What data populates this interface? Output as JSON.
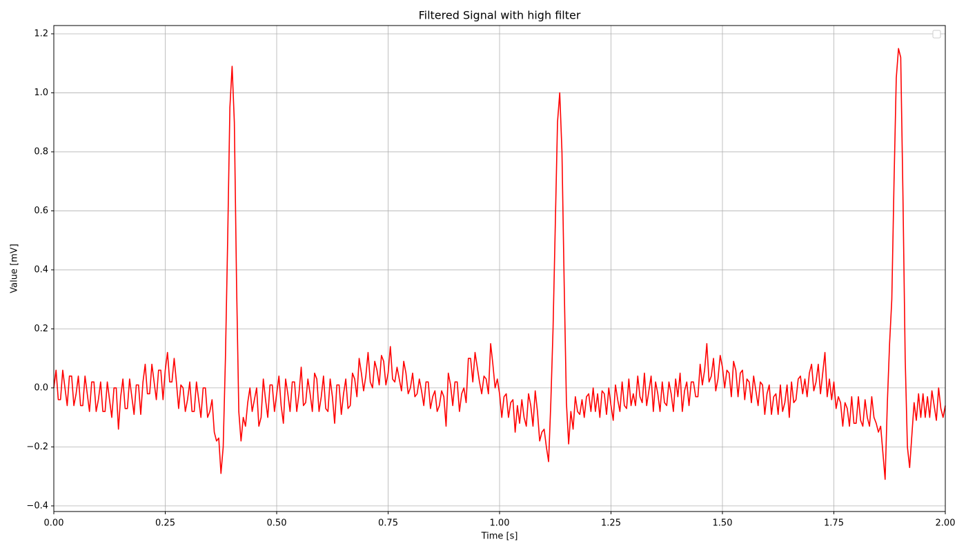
{
  "chart_data": {
    "type": "line",
    "title": "Filtered Signal with high filter",
    "xlabel": "Time [s]",
    "ylabel": "Value [mV]",
    "grid": true,
    "xlim": [
      0,
      2
    ],
    "ylim": [
      -0.419,
      1.228
    ],
    "xticks": [
      {
        "value": 0,
        "label": "0.00"
      },
      {
        "value": 0.25,
        "label": "0.25"
      },
      {
        "value": 0.5,
        "label": "0.50"
      },
      {
        "value": 0.75,
        "label": "0.75"
      },
      {
        "value": 1,
        "label": "1.00"
      },
      {
        "value": 1.25,
        "label": "1.25"
      },
      {
        "value": 1.5,
        "label": "1.50"
      },
      {
        "value": 1.75,
        "label": "1.75"
      },
      {
        "value": 2,
        "label": "2.00"
      }
    ],
    "yticks": [
      {
        "value": -0.4,
        "label": "−0.4"
      },
      {
        "value": -0.2,
        "label": "−0.2"
      },
      {
        "value": 0,
        "label": "0.0"
      },
      0.2,
      0.4,
      0.6,
      0.8,
      {
        "value": 1,
        "label": "1.0"
      },
      1.2
    ],
    "x": [
      0,
      0.005,
      0.01,
      0.015,
      0.02,
      0.025,
      0.03,
      0.035,
      0.04,
      0.045,
      0.05,
      0.055,
      0.06,
      0.065,
      0.07,
      0.075,
      0.08,
      0.085,
      0.09,
      0.095,
      0.1,
      0.105,
      0.11,
      0.115,
      0.12,
      0.125,
      0.13,
      0.135,
      0.14,
      0.145,
      0.15,
      0.155,
      0.16,
      0.165,
      0.17,
      0.175,
      0.18,
      0.185,
      0.19,
      0.195,
      0.2,
      0.205,
      0.21,
      0.215,
      0.22,
      0.225,
      0.23,
      0.235,
      0.24,
      0.245,
      0.25,
      0.255,
      0.26,
      0.265,
      0.27,
      0.275,
      0.28,
      0.285,
      0.29,
      0.295,
      0.3,
      0.305,
      0.31,
      0.315,
      0.32,
      0.325,
      0.33,
      0.335,
      0.34,
      0.345,
      0.35,
      0.355,
      0.36,
      0.365,
      0.37,
      0.375,
      0.38,
      0.385,
      0.39,
      0.395,
      0.4,
      0.405,
      0.41,
      0.415,
      0.42,
      0.425,
      0.43,
      0.435,
      0.44,
      0.445,
      0.45,
      0.455,
      0.46,
      0.465,
      0.47,
      0.475,
      0.48,
      0.485,
      0.49,
      0.495,
      0.5,
      0.505,
      0.51,
      0.515,
      0.52,
      0.525,
      0.53,
      0.535,
      0.54,
      0.545,
      0.55,
      0.555,
      0.56,
      0.565,
      0.57,
      0.575,
      0.58,
      0.585,
      0.59,
      0.595,
      0.6,
      0.605,
      0.61,
      0.615,
      0.62,
      0.625,
      0.63,
      0.635,
      0.64,
      0.645,
      0.65,
      0.655,
      0.66,
      0.665,
      0.67,
      0.675,
      0.68,
      0.685,
      0.69,
      0.695,
      0.7,
      0.705,
      0.71,
      0.715,
      0.72,
      0.725,
      0.73,
      0.735,
      0.74,
      0.745,
      0.75,
      0.755,
      0.76,
      0.765,
      0.77,
      0.775,
      0.78,
      0.785,
      0.79,
      0.795,
      0.8,
      0.805,
      0.81,
      0.815,
      0.82,
      0.825,
      0.83,
      0.835,
      0.84,
      0.845,
      0.85,
      0.855,
      0.86,
      0.865,
      0.87,
      0.875,
      0.88,
      0.885,
      0.89,
      0.895,
      0.9,
      0.905,
      0.91,
      0.915,
      0.92,
      0.925,
      0.93,
      0.935,
      0.94,
      0.945,
      0.95,
      0.955,
      0.96,
      0.965,
      0.97,
      0.975,
      0.98,
      0.985,
      0.99,
      0.995,
      1,
      1.005,
      1.01,
      1.015,
      1.02,
      1.025,
      1.03,
      1.035,
      1.04,
      1.045,
      1.05,
      1.055,
      1.06,
      1.065,
      1.07,
      1.075,
      1.08,
      1.085,
      1.09,
      1.095,
      1.1,
      1.105,
      1.11,
      1.115,
      1.12,
      1.125,
      1.13,
      1.135,
      1.14,
      1.145,
      1.15,
      1.155,
      1.16,
      1.165,
      1.17,
      1.175,
      1.18,
      1.185,
      1.19,
      1.195,
      1.2,
      1.205,
      1.21,
      1.215,
      1.22,
      1.225,
      1.23,
      1.235,
      1.24,
      1.245,
      1.25,
      1.255,
      1.26,
      1.265,
      1.27,
      1.275,
      1.28,
      1.285,
      1.29,
      1.295,
      1.3,
      1.305,
      1.31,
      1.315,
      1.32,
      1.325,
      1.33,
      1.335,
      1.34,
      1.345,
      1.35,
      1.355,
      1.36,
      1.365,
      1.37,
      1.375,
      1.38,
      1.385,
      1.39,
      1.395,
      1.4,
      1.405,
      1.41,
      1.415,
      1.42,
      1.425,
      1.43,
      1.435,
      1.44,
      1.445,
      1.45,
      1.455,
      1.46,
      1.465,
      1.47,
      1.475,
      1.48,
      1.485,
      1.49,
      1.495,
      1.5,
      1.505,
      1.51,
      1.515,
      1.52,
      1.525,
      1.53,
      1.535,
      1.54,
      1.545,
      1.55,
      1.555,
      1.56,
      1.565,
      1.57,
      1.575,
      1.58,
      1.585,
      1.59,
      1.595,
      1.6,
      1.605,
      1.61,
      1.615,
      1.62,
      1.625,
      1.63,
      1.635,
      1.64,
      1.645,
      1.65,
      1.655,
      1.66,
      1.665,
      1.67,
      1.675,
      1.68,
      1.685,
      1.69,
      1.695,
      1.7,
      1.705,
      1.71,
      1.715,
      1.72,
      1.725,
      1.73,
      1.735,
      1.74,
      1.745,
      1.75,
      1.755,
      1.76,
      1.765,
      1.77,
      1.775,
      1.78,
      1.785,
      1.79,
      1.795,
      1.8,
      1.805,
      1.81,
      1.815,
      1.82,
      1.825,
      1.83,
      1.835,
      1.84,
      1.845,
      1.85,
      1.855,
      1.86,
      1.865,
      1.87,
      1.875,
      1.88,
      1.885,
      1.89,
      1.895,
      1.9,
      1.905,
      1.91,
      1.915,
      1.92,
      1.925,
      1.93,
      1.935,
      1.94,
      1.945,
      1.95,
      1.955,
      1.96,
      1.965,
      1.97,
      1.975,
      1.98,
      1.985,
      1.99,
      1.995,
      2
    ],
    "series": [
      {
        "color": "#ff0000",
        "values": [
          0,
          0.06,
          -0.04,
          -0.04,
          0.06,
          0,
          -0.06,
          0.04,
          0.04,
          -0.06,
          -0.02,
          0.04,
          -0.06,
          -0.06,
          0.04,
          -0.02,
          -0.08,
          0.02,
          0.02,
          -0.08,
          -0.04,
          0.02,
          -0.08,
          -0.08,
          0.02,
          -0.04,
          -0.1,
          0,
          0,
          -0.14,
          -0.03,
          0.03,
          -0.07,
          -0.07,
          0.03,
          -0.03,
          -0.09,
          0.01,
          0.01,
          -0.09,
          0.02,
          0.08,
          -0.02,
          -0.02,
          0.08,
          0.02,
          -0.04,
          0.06,
          0.06,
          -0.04,
          0.06,
          0.12,
          0.02,
          0.02,
          0.1,
          0.02,
          -0.07,
          0.01,
          0,
          -0.08,
          -0.04,
          0.02,
          -0.08,
          -0.08,
          0.02,
          -0.04,
          -0.1,
          0,
          0,
          -0.1,
          -0.08,
          -0.04,
          -0.15,
          -0.18,
          -0.17,
          -0.29,
          -0.2,
          0.1,
          0.5,
          0.95,
          1.09,
          0.9,
          0.35,
          -0.08,
          -0.18,
          -0.1,
          -0.13,
          -0.05,
          0,
          -0.08,
          -0.04,
          0,
          -0.13,
          -0.1,
          0.03,
          -0.04,
          -0.1,
          0.01,
          0.01,
          -0.08,
          -0.02,
          0.04,
          -0.06,
          -0.12,
          0.03,
          -0.02,
          -0.08,
          0.02,
          0.02,
          -0.08,
          -0.02,
          0.07,
          -0.06,
          -0.05,
          0.03,
          -0.02,
          -0.08,
          0.05,
          0.03,
          -0.08,
          -0.03,
          0.04,
          -0.07,
          -0.08,
          0.03,
          -0.03,
          -0.12,
          0.01,
          0.01,
          -0.09,
          -0.02,
          0.03,
          -0.07,
          -0.06,
          0.05,
          0.03,
          -0.03,
          0.1,
          0.05,
          -0.01,
          0.04,
          0.12,
          0.02,
          0,
          0.09,
          0.06,
          0.01,
          0.11,
          0.09,
          0.01,
          0.05,
          0.14,
          0.03,
          0.02,
          0.07,
          0.03,
          -0.01,
          0.09,
          0.05,
          -0.02,
          0,
          0.05,
          -0.03,
          -0.02,
          0.03,
          -0.01,
          -0.06,
          0.02,
          0.02,
          -0.07,
          -0.03,
          -0.01,
          -0.08,
          -0.06,
          -0.01,
          -0.03,
          -0.13,
          0.05,
          0.01,
          -0.06,
          0.02,
          0.02,
          -0.08,
          -0.02,
          0,
          -0.05,
          0.1,
          0.1,
          0.02,
          0.12,
          0.07,
          0.02,
          -0.02,
          0.04,
          0.03,
          -0.02,
          0.15,
          0.08,
          0,
          0.03,
          -0.02,
          -0.1,
          -0.03,
          -0.02,
          -0.1,
          -0.05,
          -0.04,
          -0.15,
          -0.06,
          -0.12,
          -0.04,
          -0.1,
          -0.13,
          -0.02,
          -0.06,
          -0.13,
          -0.01,
          -0.08,
          -0.18,
          -0.15,
          -0.14,
          -0.2,
          -0.25,
          -0.05,
          0.2,
          0.55,
          0.9,
          1,
          0.8,
          0.35,
          -0.05,
          -0.19,
          -0.08,
          -0.14,
          -0.03,
          -0.08,
          -0.09,
          -0.04,
          -0.1,
          -0.03,
          -0.02,
          -0.08,
          0,
          -0.08,
          -0.02,
          -0.1,
          -0.01,
          -0.02,
          -0.09,
          0,
          -0.06,
          -0.11,
          0.01,
          -0.04,
          -0.08,
          0.02,
          -0.06,
          -0.07,
          0.03,
          -0.06,
          -0.02,
          -0.06,
          0.04,
          -0.03,
          -0.05,
          0.05,
          -0.06,
          -0.01,
          0.04,
          -0.08,
          0.02,
          -0.02,
          -0.08,
          0.02,
          -0.05,
          -0.06,
          0.02,
          -0.02,
          -0.08,
          0.03,
          -0.03,
          0.05,
          -0.08,
          -0.01,
          0.02,
          -0.06,
          0.02,
          0.02,
          -0.03,
          -0.03,
          0.08,
          0.01,
          0.06,
          0.15,
          0.02,
          0.04,
          0.1,
          -0.01,
          0.03,
          0.11,
          0.07,
          0,
          0.06,
          0.05,
          -0.03,
          0.09,
          0.06,
          -0.03,
          0.05,
          0.06,
          -0.04,
          0.03,
          0.02,
          -0.05,
          0.04,
          -0.01,
          -0.06,
          0.02,
          0.01,
          -0.09,
          -0.02,
          0.01,
          -0.09,
          -0.03,
          -0.02,
          -0.09,
          0.01,
          -0.08,
          -0.05,
          0.01,
          -0.1,
          0.02,
          -0.05,
          -0.04,
          0.03,
          0.04,
          -0.02,
          0.03,
          -0.03,
          0.05,
          0.08,
          -0.01,
          0.02,
          0.08,
          -0.02,
          0.05,
          0.12,
          -0.03,
          0.03,
          -0.04,
          0.02,
          -0.07,
          -0.03,
          -0.05,
          -0.13,
          -0.05,
          -0.07,
          -0.13,
          -0.03,
          -0.12,
          -0.12,
          -0.03,
          -0.11,
          -0.13,
          -0.04,
          -0.1,
          -0.13,
          -0.03,
          -0.1,
          -0.12,
          -0.15,
          -0.13,
          -0.22,
          -0.31,
          -0.05,
          0.15,
          0.3,
          0.7,
          1.05,
          1.15,
          1.12,
          0.65,
          0.1,
          -0.2,
          -0.27,
          -0.16,
          -0.05,
          -0.11,
          -0.02,
          -0.1,
          -0.02,
          -0.1,
          -0.03,
          -0.1,
          -0.01,
          -0.06,
          -0.11,
          0,
          -0.07,
          -0.1,
          -0.06
        ]
      }
    ]
  }
}
